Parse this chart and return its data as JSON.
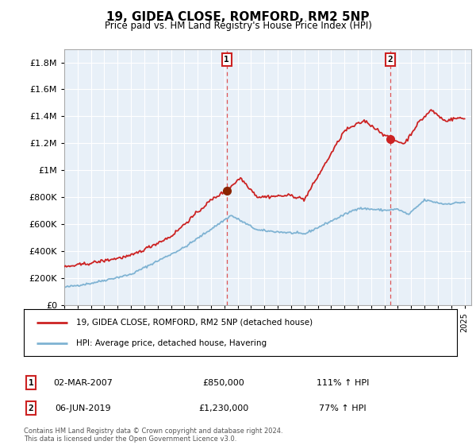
{
  "title": "19, GIDEA CLOSE, ROMFORD, RM2 5NP",
  "subtitle": "Price paid vs. HM Land Registry's House Price Index (HPI)",
  "legend_line1": "19, GIDEA CLOSE, ROMFORD, RM2 5NP (detached house)",
  "legend_line2": "HPI: Average price, detached house, Havering",
  "sale1_date": "02-MAR-2007",
  "sale1_price": 850000,
  "sale1_pct": "111% ↑ HPI",
  "sale2_date": "06-JUN-2019",
  "sale2_price": 1230000,
  "sale2_pct": "77% ↑ HPI",
  "footer": "Contains HM Land Registry data © Crown copyright and database right 2024.\nThis data is licensed under the Open Government Licence v3.0.",
  "hpi_color": "#7fb3d3",
  "price_color": "#cc2222",
  "vline_color": "#dd4444",
  "marker1_color": "#8B2500",
  "marker2_color": "#cc2222",
  "bg_color": "#e8f0f8",
  "ylim": [
    0,
    1900000
  ],
  "yticks": [
    0,
    200000,
    400000,
    600000,
    800000,
    1000000,
    1200000,
    1400000,
    1600000,
    1800000
  ],
  "sale1_year": 2007.17,
  "sale2_year": 2019.42,
  "sale1_price_val": 850000,
  "sale2_price_val": 1230000,
  "xmin": 1995,
  "xmax": 2025.5
}
